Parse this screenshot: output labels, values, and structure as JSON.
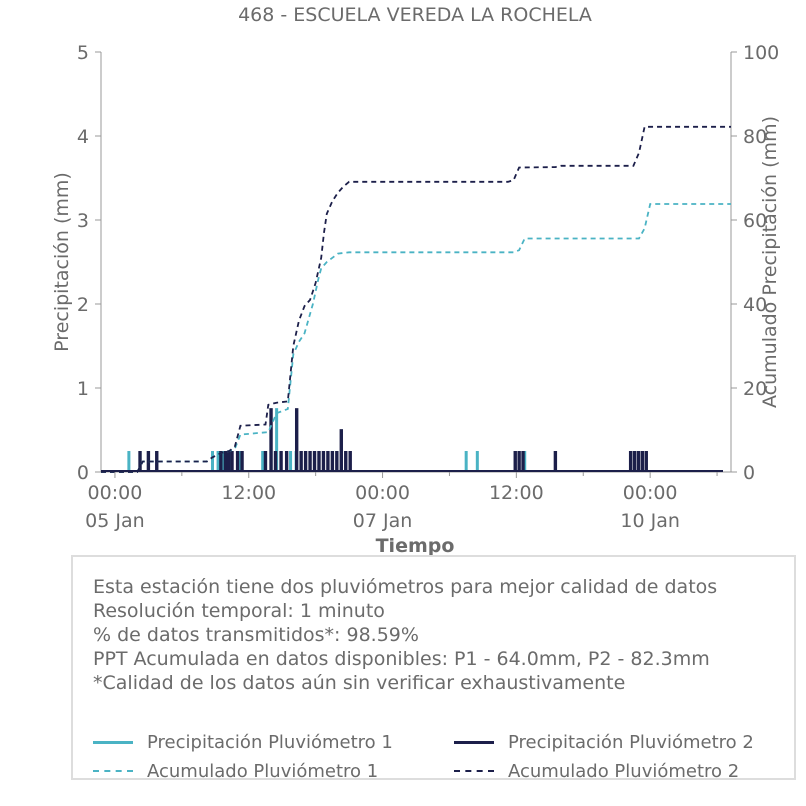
{
  "chart_data": {
    "type": "line",
    "title": "468 - ESCUELA VEREDA LA ROCHELA",
    "xlabel": "Tiempo",
    "ylabel": "Precipitación (mm)",
    "y2label": "Acumulado Precipitación (mm)",
    "x_range_hours": [
      -2.5,
      110.5
    ],
    "ylim": [
      0,
      5
    ],
    "y2lim": [
      0,
      100
    ],
    "yticks": [
      "0",
      "1",
      "2",
      "3",
      "4",
      "5"
    ],
    "y2ticks": [
      "0",
      "20",
      "40",
      "60",
      "80",
      "100"
    ],
    "xticks": [
      {
        "hour": 0,
        "label": "00:00",
        "date": "05 Jan"
      },
      {
        "hour": 24,
        "label": "12:00",
        "date": ""
      },
      {
        "hour": 48,
        "label": "00:00",
        "date": "07 Jan"
      },
      {
        "hour": 72,
        "label": "12:00",
        "date": ""
      },
      {
        "hour": 96,
        "label": "00:00",
        "date": "10 Jan"
      }
    ],
    "grid": false,
    "series": [
      {
        "name": "Precipitación Pluviómetro 1",
        "color": "#4ab3c4",
        "style": "solid",
        "axis": "left",
        "bars": [
          [
            2.5,
            0.25
          ],
          [
            17.5,
            0.25
          ],
          [
            18.5,
            0.25
          ],
          [
            19.5,
            0.25
          ],
          [
            20.5,
            0.25
          ],
          [
            22.5,
            0.25
          ],
          [
            26.5,
            0.25
          ],
          [
            28.0,
            0.25
          ],
          [
            29.0,
            0.76
          ],
          [
            31.5,
            0.25
          ],
          [
            32.5,
            0.25
          ],
          [
            63.0,
            0.25
          ],
          [
            65.0,
            0.25
          ],
          [
            73.5,
            0.25
          ]
        ]
      },
      {
        "name": "Precipitación Pluviómetro 2",
        "color": "#1c1f4a",
        "style": "solid",
        "axis": "left",
        "bars": [
          [
            4.5,
            0.25
          ],
          [
            6.0,
            0.25
          ],
          [
            7.5,
            0.25
          ],
          [
            19.0,
            0.25
          ],
          [
            19.8,
            0.25
          ],
          [
            20.4,
            0.25
          ],
          [
            21.0,
            0.25
          ],
          [
            22.0,
            0.25
          ],
          [
            22.8,
            0.25
          ],
          [
            27.0,
            0.25
          ],
          [
            28.0,
            0.76
          ],
          [
            28.8,
            0.25
          ],
          [
            29.8,
            0.25
          ],
          [
            30.8,
            0.25
          ],
          [
            32.6,
            0.76
          ],
          [
            33.4,
            0.25
          ],
          [
            34.2,
            0.25
          ],
          [
            35.0,
            0.25
          ],
          [
            35.8,
            0.25
          ],
          [
            36.6,
            0.25
          ],
          [
            37.4,
            0.25
          ],
          [
            38.2,
            0.25
          ],
          [
            39.0,
            0.25
          ],
          [
            39.8,
            0.25
          ],
          [
            40.6,
            0.51
          ],
          [
            41.4,
            0.25
          ],
          [
            42.2,
            0.25
          ],
          [
            71.8,
            0.25
          ],
          [
            72.5,
            0.25
          ],
          [
            73.2,
            0.25
          ],
          [
            79.0,
            0.25
          ],
          [
            92.5,
            0.25
          ],
          [
            93.2,
            0.25
          ],
          [
            93.9,
            0.25
          ],
          [
            94.6,
            0.25
          ],
          [
            95.3,
            0.25
          ]
        ]
      },
      {
        "name": "Acumulado Pluviómetro 1",
        "color": "#4ab3c4",
        "style": "dashed",
        "axis": "right",
        "points": [
          [
            -2.5,
            0
          ],
          [
            4.0,
            0
          ],
          [
            5.0,
            2.5
          ],
          [
            16.5,
            2.5
          ],
          [
            17.5,
            3.5
          ],
          [
            19.0,
            4.5
          ],
          [
            20.5,
            5.0
          ],
          [
            21.5,
            5.5
          ],
          [
            22.5,
            8.9
          ],
          [
            27.5,
            9.5
          ],
          [
            29.0,
            14.0
          ],
          [
            31.0,
            15.0
          ],
          [
            32.0,
            28.0
          ],
          [
            33.0,
            31.0
          ],
          [
            34.0,
            33.0
          ],
          [
            35.5,
            40.0
          ],
          [
            36.5,
            46.0
          ],
          [
            37.0,
            48.5
          ],
          [
            38.0,
            50.0
          ],
          [
            40.0,
            52.0
          ],
          [
            42.0,
            52.3
          ],
          [
            71.5,
            52.3
          ],
          [
            72.5,
            52.8
          ],
          [
            73.5,
            55.6
          ],
          [
            94.0,
            55.6
          ],
          [
            95.0,
            58.0
          ],
          [
            96.0,
            63.8
          ],
          [
            110.5,
            63.8
          ]
        ]
      },
      {
        "name": "Acumulado Pluviómetro 2",
        "color": "#1c1f4a",
        "style": "dashed",
        "axis": "right",
        "points": [
          [
            -2.5,
            0
          ],
          [
            4.0,
            0
          ],
          [
            5.0,
            2.5
          ],
          [
            16.5,
            2.5
          ],
          [
            17.5,
            3.5
          ],
          [
            19.0,
            4.5
          ],
          [
            20.5,
            5.0
          ],
          [
            21.5,
            6.0
          ],
          [
            22.5,
            11.0
          ],
          [
            27.0,
            11.3
          ],
          [
            27.5,
            16.0
          ],
          [
            29.0,
            16.5
          ],
          [
            31.0,
            16.8
          ],
          [
            32.0,
            30.0
          ],
          [
            33.0,
            36.0
          ],
          [
            34.0,
            39.5
          ],
          [
            35.0,
            41.0
          ],
          [
            36.0,
            45.0
          ],
          [
            37.0,
            51.0
          ],
          [
            37.5,
            57.0
          ],
          [
            38.0,
            61.5
          ],
          [
            39.0,
            64.5
          ],
          [
            40.0,
            66.5
          ],
          [
            41.0,
            68.0
          ],
          [
            42.0,
            69.1
          ],
          [
            70.5,
            69.1
          ],
          [
            71.5,
            69.5
          ],
          [
            72.5,
            72.5
          ],
          [
            79.0,
            72.6
          ],
          [
            80.0,
            72.9
          ],
          [
            93.0,
            72.9
          ],
          [
            94.0,
            76.0
          ],
          [
            95.0,
            82.2
          ],
          [
            110.5,
            82.2
          ]
        ]
      }
    ]
  },
  "info": {
    "lines": [
      "Esta estación tiene dos pluviómetros para mejor calidad de datos",
      "Resolución temporal: 1 minuto",
      "% de datos transmitidos*: 98.59%",
      "PPT Acumulada en datos disponibles: P1 - 64.0mm, P2 - 82.3mm",
      "*Calidad de los datos aún sin verificar exhaustivamente"
    ]
  },
  "legend": {
    "items": [
      {
        "label": "Precipitación Pluviómetro 1",
        "color": "#4ab3c4",
        "style": "solid"
      },
      {
        "label": "Precipitación Pluviómetro 2",
        "color": "#1c1f4a",
        "style": "solid"
      },
      {
        "label": "Acumulado Pluviómetro 1",
        "color": "#4ab3c4",
        "style": "dashed"
      },
      {
        "label": "Acumulado Pluviómetro 2",
        "color": "#1c1f4a",
        "style": "dashed"
      }
    ]
  }
}
